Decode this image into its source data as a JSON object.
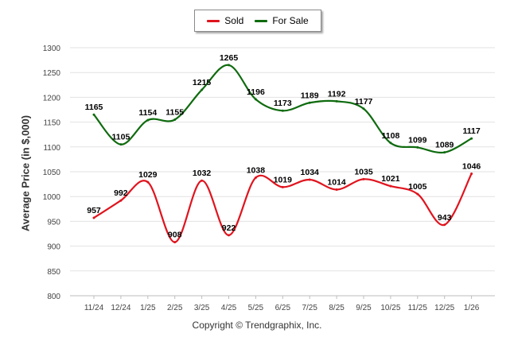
{
  "legend": {
    "sold_label": "Sold",
    "forsale_label": "For Sale"
  },
  "copyright": "Copyright © Trendgraphix, Inc.",
  "colors": {
    "sold": "#e0141e",
    "for_sale": "#0f6b0f",
    "grid": "#e2e2e2",
    "axis_text": "#444444"
  },
  "chart_data": {
    "type": "line",
    "title": "",
    "xlabel": "",
    "ylabel": "Average Price (in $,000)",
    "categories": [
      "11/24",
      "12/24",
      "1/25",
      "2/25",
      "3/25",
      "4/25",
      "5/25",
      "6/25",
      "7/25",
      "8/25",
      "9/25",
      "10/25",
      "11/25",
      "12/25",
      "1/26"
    ],
    "ylim": [
      800,
      1300
    ],
    "yticks": [
      800,
      850,
      900,
      950,
      1000,
      1050,
      1100,
      1150,
      1200,
      1250,
      1300
    ],
    "grid": true,
    "legend_position": "top-center",
    "series": [
      {
        "name": "Sold",
        "values": [
          957,
          992,
          1029,
          908,
          1032,
          922,
          1038,
          1019,
          1034,
          1014,
          1035,
          1021,
          1005,
          943,
          1046
        ]
      },
      {
        "name": "For Sale",
        "values": [
          1165,
          1105,
          1154,
          1155,
          1215,
          1265,
          1196,
          1173,
          1189,
          1192,
          1177,
          1108,
          1099,
          1089,
          1117
        ]
      }
    ]
  }
}
